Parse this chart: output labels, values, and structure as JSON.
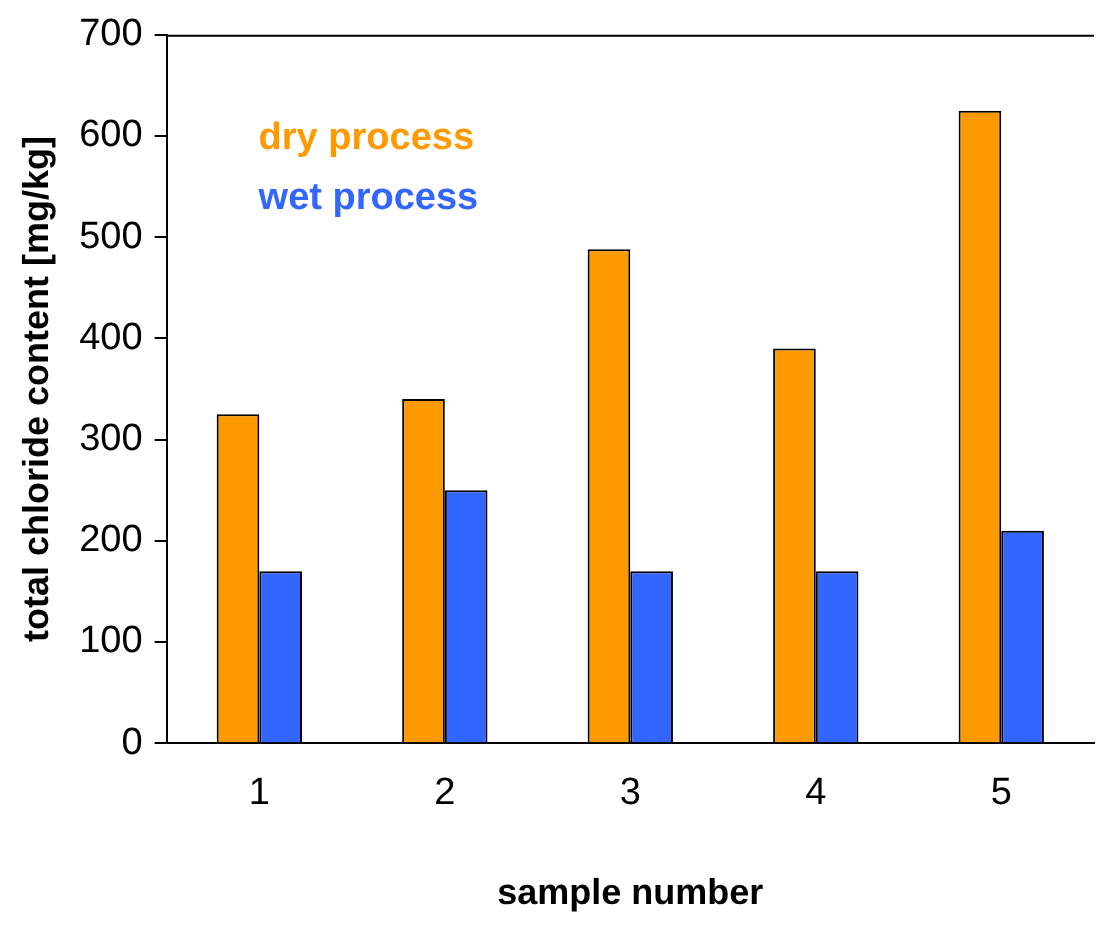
{
  "chart_data": {
    "type": "bar",
    "xlabel": "sample number",
    "ylabel": "total chloride content [mg/kg]",
    "categories": [
      "1",
      "2",
      "3",
      "4",
      "5"
    ],
    "series": [
      {
        "name": "dry process",
        "color": "#ff9900",
        "values": [
          325,
          340,
          488,
          390,
          625
        ]
      },
      {
        "name": "wet process",
        "color": "#3366ff",
        "values": [
          170,
          250,
          170,
          170,
          210
        ]
      }
    ],
    "ylim": [
      0,
      700
    ],
    "yticks": [
      0,
      100,
      200,
      300,
      400,
      500,
      600,
      700
    ],
    "grid": false,
    "legend": "top left"
  }
}
